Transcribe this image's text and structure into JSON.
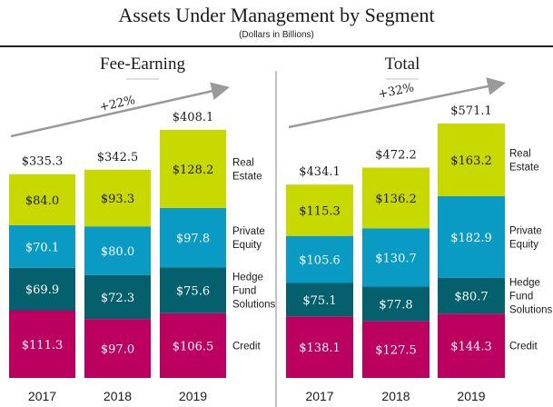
{
  "title": "Assets Under Management by Segment",
  "subtitle": "(Dollars in Billions)",
  "colors": {
    "Real Estate": "#c8d900",
    "Private Equity": "#0a9bc4",
    "Hedge Fund Solutions": "#05606e",
    "Credit": "#bb0060",
    "arrow": "#9a9a9a",
    "divider": "#b0b0b0"
  },
  "chart_data": [
    {
      "type": "bar",
      "stacked": true,
      "title": "Fee-Earning",
      "categories": [
        "2017",
        "2018",
        "2019"
      ],
      "series": [
        {
          "name": "Credit",
          "legend_lines": [
            "Credit"
          ],
          "values": [
            111.3,
            97.0,
            106.5
          ],
          "labels": [
            "$111.3",
            "$97.0",
            "$106.5"
          ]
        },
        {
          "name": "Hedge Fund Solutions",
          "legend_lines": [
            "Hedge",
            "Fund",
            "Solutions"
          ],
          "values": [
            69.9,
            72.3,
            75.6
          ],
          "labels": [
            "$69.9",
            "$72.3",
            "$75.6"
          ]
        },
        {
          "name": "Private Equity",
          "legend_lines": [
            "Private",
            "Equity"
          ],
          "values": [
            70.1,
            80.0,
            97.8
          ],
          "labels": [
            "$70.1",
            "$80.0",
            "$97.8"
          ]
        },
        {
          "name": "Real Estate",
          "legend_lines": [
            "Real",
            "Estate"
          ],
          "values": [
            84.0,
            93.3,
            128.2
          ],
          "labels": [
            "$84.0",
            "$93.3",
            "$128.2"
          ]
        }
      ],
      "totals": [
        335.3,
        342.5,
        408.1
      ],
      "total_labels": [
        "$335.3",
        "$342.5",
        "$408.1"
      ],
      "growth_annotation": "+22%",
      "ylim": [
        0,
        410
      ]
    },
    {
      "type": "bar",
      "stacked": true,
      "title": "Total",
      "categories": [
        "2017",
        "2018",
        "2019"
      ],
      "series": [
        {
          "name": "Credit",
          "legend_lines": [
            "Credit"
          ],
          "values": [
            138.1,
            127.5,
            144.3
          ],
          "labels": [
            "$138.1",
            "$127.5",
            "$144.3"
          ]
        },
        {
          "name": "Hedge Fund Solutions",
          "legend_lines": [
            "Hedge",
            "Fund",
            "Solutions"
          ],
          "values": [
            75.1,
            77.8,
            80.7
          ],
          "labels": [
            "$75.1",
            "$77.8",
            "$80.7"
          ]
        },
        {
          "name": "Private Equity",
          "legend_lines": [
            "Private",
            "Equity"
          ],
          "values": [
            105.6,
            130.7,
            182.9
          ],
          "labels": [
            "$105.6",
            "$130.7",
            "$182.9"
          ]
        },
        {
          "name": "Real Estate",
          "legend_lines": [
            "Real",
            "Estate"
          ],
          "values": [
            115.3,
            136.2,
            163.2
          ],
          "labels": [
            "$115.3",
            "$136.2",
            "$163.2"
          ]
        }
      ],
      "totals": [
        434.1,
        472.2,
        571.1
      ],
      "total_labels": [
        "$434.1",
        "$472.2",
        "$571.1"
      ],
      "growth_annotation": "+32%",
      "ylim": [
        0,
        575
      ]
    }
  ]
}
